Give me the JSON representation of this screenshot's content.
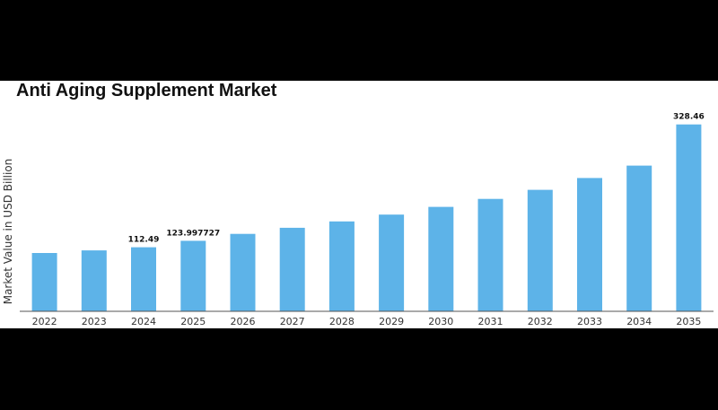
{
  "chart_data": {
    "type": "bar",
    "title": "Anti Aging Supplement Market",
    "xlabel": "",
    "ylabel": "Market Value in USD Billion",
    "categories": [
      "2022",
      "2023",
      "2024",
      "2025",
      "2026",
      "2027",
      "2028",
      "2029",
      "2030",
      "2031",
      "2032",
      "2033",
      "2034",
      "2035"
    ],
    "values": [
      102.4,
      107.0,
      112.49,
      123.997727,
      136.0,
      146.8,
      158.0,
      170.0,
      183.5,
      197.5,
      213.5,
      234.3,
      256.0,
      328.46
    ],
    "data_labels": {
      "2024": "112.49",
      "2025": "123.997727",
      "2035": "328.46"
    },
    "ylim": [
      0,
      350
    ],
    "grid": false,
    "legend": "none",
    "bar_color": "#5DB3E8"
  }
}
